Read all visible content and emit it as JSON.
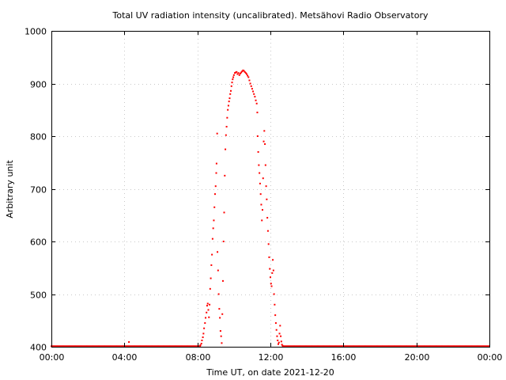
{
  "chart_data": {
    "type": "scatter",
    "title": "Total UV radiation intensity (uncalibrated). Metsähovi Radio Observatory",
    "xlabel": "Time UT, on date 2021-12-20",
    "ylabel": "Arbitrary unit",
    "xlim": [
      "00:00",
      "24:00"
    ],
    "ylim": [
      400,
      1000
    ],
    "x_ticks": [
      "00:00",
      "04:00",
      "08:00",
      "12:00",
      "16:00",
      "20:00",
      "00:00"
    ],
    "y_ticks": [
      400,
      500,
      600,
      700,
      800,
      900,
      1000
    ],
    "grid": true,
    "marker_color": "#ff0000",
    "baseline_value": 401,
    "points": [
      [
        "04:15",
        409
      ],
      [
        "08:10",
        403
      ],
      [
        "08:13",
        406
      ],
      [
        "08:15",
        412
      ],
      [
        "08:18",
        418
      ],
      [
        "08:20",
        425
      ],
      [
        "08:22",
        435
      ],
      [
        "08:25",
        445
      ],
      [
        "08:27",
        455
      ],
      [
        "08:30",
        465
      ],
      [
        "08:32",
        478
      ],
      [
        "08:34",
        482
      ],
      [
        "08:36",
        470
      ],
      [
        "08:38",
        456
      ],
      [
        "08:40",
        480
      ],
      [
        "08:42",
        510
      ],
      [
        "08:44",
        530
      ],
      [
        "08:46",
        555
      ],
      [
        "08:48",
        575
      ],
      [
        "08:50",
        605
      ],
      [
        "08:52",
        625
      ],
      [
        "08:54",
        640
      ],
      [
        "08:56",
        665
      ],
      [
        "08:58",
        690
      ],
      [
        "09:00",
        705
      ],
      [
        "09:02",
        730
      ],
      [
        "09:03",
        748
      ],
      [
        "09:05",
        805
      ],
      [
        "09:06",
        580
      ],
      [
        "09:08",
        545
      ],
      [
        "09:10",
        500
      ],
      [
        "09:12",
        472
      ],
      [
        "09:14",
        455
      ],
      [
        "09:16",
        430
      ],
      [
        "09:18",
        420
      ],
      [
        "09:20",
        407
      ],
      [
        "09:22",
        462
      ],
      [
        "09:24",
        525
      ],
      [
        "09:26",
        600
      ],
      [
        "09:28",
        655
      ],
      [
        "09:30",
        725
      ],
      [
        "09:32",
        775
      ],
      [
        "09:34",
        802
      ],
      [
        "09:36",
        818
      ],
      [
        "09:38",
        835
      ],
      [
        "09:40",
        850
      ],
      [
        "09:42",
        858
      ],
      [
        "09:44",
        866
      ],
      [
        "09:46",
        872
      ],
      [
        "09:48",
        880
      ],
      [
        "09:50",
        886
      ],
      [
        "09:52",
        895
      ],
      [
        "09:54",
        902
      ],
      [
        "09:56",
        908
      ],
      [
        "09:58",
        912
      ],
      [
        "10:00",
        916
      ],
      [
        "10:03",
        920
      ],
      [
        "10:06",
        921
      ],
      [
        "10:09",
        922
      ],
      [
        "10:12",
        918
      ],
      [
        "10:15",
        920
      ],
      [
        "10:18",
        916
      ],
      [
        "10:21",
        919
      ],
      [
        "10:24",
        921
      ],
      [
        "10:27",
        923
      ],
      [
        "10:30",
        925
      ],
      [
        "10:33",
        924
      ],
      [
        "10:36",
        922
      ],
      [
        "10:39",
        920
      ],
      [
        "10:42",
        918
      ],
      [
        "10:45",
        915
      ],
      [
        "10:48",
        912
      ],
      [
        "10:51",
        906
      ],
      [
        "10:54",
        900
      ],
      [
        "10:57",
        895
      ],
      [
        "11:00",
        890
      ],
      [
        "11:03",
        885
      ],
      [
        "11:06",
        880
      ],
      [
        "11:09",
        875
      ],
      [
        "11:12",
        868
      ],
      [
        "11:15",
        862
      ],
      [
        "11:17",
        845
      ],
      [
        "11:18",
        800
      ],
      [
        "11:20",
        770
      ],
      [
        "11:22",
        745
      ],
      [
        "11:24",
        730
      ],
      [
        "11:26",
        710
      ],
      [
        "11:28",
        690
      ],
      [
        "11:30",
        670
      ],
      [
        "11:32",
        640
      ],
      [
        "11:34",
        660
      ],
      [
        "11:36",
        720
      ],
      [
        "11:38",
        790
      ],
      [
        "11:40",
        810
      ],
      [
        "11:42",
        785
      ],
      [
        "11:44",
        745
      ],
      [
        "11:46",
        705
      ],
      [
        "11:48",
        680
      ],
      [
        "11:50",
        645
      ],
      [
        "11:52",
        620
      ],
      [
        "11:54",
        595
      ],
      [
        "11:56",
        570
      ],
      [
        "11:58",
        548
      ],
      [
        "12:00",
        532
      ],
      [
        "12:02",
        520
      ],
      [
        "12:04",
        515
      ],
      [
        "12:06",
        540
      ],
      [
        "12:08",
        565
      ],
      [
        "12:10",
        545
      ],
      [
        "12:12",
        500
      ],
      [
        "12:14",
        480
      ],
      [
        "12:16",
        460
      ],
      [
        "12:18",
        445
      ],
      [
        "12:20",
        432
      ],
      [
        "12:22",
        420
      ],
      [
        "12:24",
        412
      ],
      [
        "12:26",
        405
      ],
      [
        "12:28",
        408
      ],
      [
        "12:30",
        425
      ],
      [
        "12:32",
        440
      ],
      [
        "12:34",
        420
      ],
      [
        "12:36",
        410
      ],
      [
        "12:38",
        404
      ],
      [
        "12:40",
        402
      ]
    ]
  }
}
